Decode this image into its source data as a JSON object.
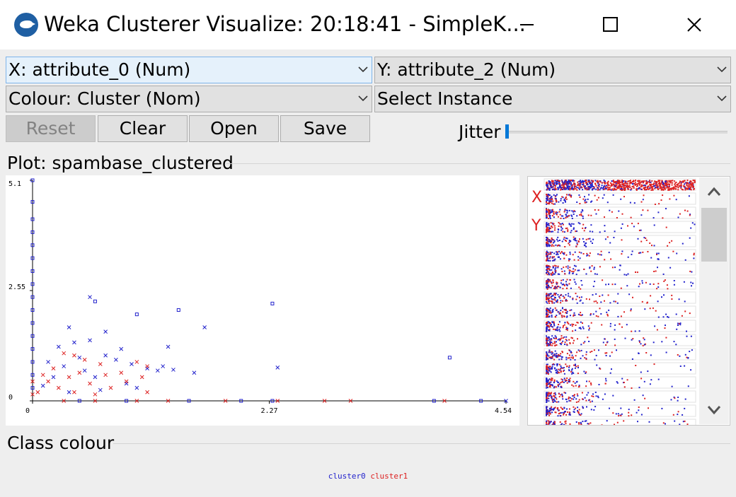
{
  "window": {
    "title": "Weka Clusterer Visualize: 20:18:41 - SimpleK...",
    "icon": "weka-bird-icon",
    "controls": [
      "minimize-icon",
      "maximize-icon",
      "close-icon"
    ]
  },
  "controls": {
    "x_axis": "X: attribute_0 (Num)",
    "y_axis": "Y: attribute_2 (Num)",
    "colour": "Colour: Cluster (Nom)",
    "select_instance": "Select Instance",
    "buttons": {
      "reset": "Reset",
      "clear": "Clear",
      "open": "Open",
      "save": "Save"
    },
    "jitter_label": "Jitter",
    "jitter_value": 0
  },
  "plot": {
    "title": "Plot: spambase_clustered",
    "y_ticks": [
      "5.1",
      "2.55",
      "0"
    ],
    "x_ticks": [
      "0",
      "2.27",
      "4.54"
    ]
  },
  "matrix": {
    "x_label": "X",
    "y_label": "Y",
    "rows": 18
  },
  "class_colour": {
    "title": "Class colour",
    "legend": [
      {
        "name": "cluster0",
        "color": "#2222cc"
      },
      {
        "name": "cluster1",
        "color": "#dd2222"
      }
    ]
  },
  "chart_data": {
    "type": "scatter",
    "title": "Plot: spambase_clustered",
    "xlabel": "attribute_0",
    "ylabel": "attribute_2",
    "xlim": [
      0,
      4.54
    ],
    "ylim": [
      0,
      5.1
    ],
    "x_ticks": [
      0,
      2.27,
      4.54
    ],
    "y_ticks": [
      0,
      2.55,
      5.1
    ],
    "series": [
      {
        "name": "cluster0",
        "color": "#2222cc",
        "points": [
          {
            "x": 0.55,
            "y": 2.4,
            "m": "x"
          },
          {
            "x": 0.6,
            "y": 2.3,
            "m": "s"
          },
          {
            "x": 1.0,
            "y": 2.0,
            "m": "s"
          },
          {
            "x": 1.4,
            "y": 2.1,
            "m": "s"
          },
          {
            "x": 2.3,
            "y": 2.25,
            "m": "s"
          },
          {
            "x": 1.65,
            "y": 1.7,
            "m": "x"
          },
          {
            "x": 4.0,
            "y": 1.0,
            "m": "s"
          },
          {
            "x": 2.35,
            "y": 0.77,
            "m": "x"
          },
          {
            "x": 0.35,
            "y": 1.7,
            "m": "x"
          },
          {
            "x": 0.4,
            "y": 1.35,
            "m": "x"
          },
          {
            "x": 0.25,
            "y": 1.25,
            "m": "x"
          },
          {
            "x": 0.55,
            "y": 1.4,
            "m": "x"
          },
          {
            "x": 0.7,
            "y": 1.05,
            "m": "x"
          },
          {
            "x": 0.8,
            "y": 0.95,
            "m": "x"
          },
          {
            "x": 0.95,
            "y": 0.85,
            "m": "x"
          },
          {
            "x": 1.1,
            "y": 0.75,
            "m": "x"
          },
          {
            "x": 1.2,
            "y": 0.7,
            "m": "x"
          },
          {
            "x": 1.3,
            "y": 1.25,
            "m": "x"
          },
          {
            "x": 1.25,
            "y": 0.8,
            "m": "x"
          },
          {
            "x": 1.35,
            "y": 0.72,
            "m": "x"
          },
          {
            "x": 0.6,
            "y": 0.55,
            "m": "x"
          },
          {
            "x": 0.9,
            "y": 0.4,
            "m": "x"
          },
          {
            "x": 1.0,
            "y": 0.3,
            "m": "x"
          },
          {
            "x": 0.3,
            "y": 0.8,
            "m": "x"
          },
          {
            "x": 0.2,
            "y": 0.55,
            "m": "x"
          },
          {
            "x": 0.5,
            "y": 0.7,
            "m": "x"
          },
          {
            "x": 0.15,
            "y": 0.9,
            "m": "x"
          },
          {
            "x": 0.45,
            "y": 1.0,
            "m": "x"
          },
          {
            "x": 0.7,
            "y": 1.6,
            "m": "x"
          },
          {
            "x": 0.85,
            "y": 1.2,
            "m": "x"
          },
          {
            "x": 1.55,
            "y": 0.65,
            "m": "x"
          },
          {
            "x": 0.1,
            "y": 0.35,
            "m": "x"
          },
          {
            "x": 0.35,
            "y": 0.2,
            "m": "x"
          },
          {
            "x": 0.65,
            "y": 0.25,
            "m": "x"
          },
          {
            "x": 0,
            "y": 5.1,
            "m": "s"
          },
          {
            "x": 0,
            "y": 4.6,
            "m": "s"
          },
          {
            "x": 0,
            "y": 4.2,
            "m": "s"
          },
          {
            "x": 0,
            "y": 3.9,
            "m": "s"
          },
          {
            "x": 0,
            "y": 3.6,
            "m": "s"
          },
          {
            "x": 0,
            "y": 3.3,
            "m": "s"
          },
          {
            "x": 0,
            "y": 3.0,
            "m": "s"
          },
          {
            "x": 0,
            "y": 2.7,
            "m": "s"
          },
          {
            "x": 0,
            "y": 2.4,
            "m": "s"
          },
          {
            "x": 0,
            "y": 2.1,
            "m": "s"
          },
          {
            "x": 0,
            "y": 1.8,
            "m": "s"
          },
          {
            "x": 0,
            "y": 1.5,
            "m": "s"
          },
          {
            "x": 0,
            "y": 1.2,
            "m": "s"
          },
          {
            "x": 0,
            "y": 0.9,
            "m": "s"
          },
          {
            "x": 0,
            "y": 0.6,
            "m": "s"
          },
          {
            "x": 0,
            "y": 0.3,
            "m": "s"
          },
          {
            "x": 0.45,
            "y": 0,
            "m": "s"
          },
          {
            "x": 0.9,
            "y": 0,
            "m": "s"
          },
          {
            "x": 1.5,
            "y": 0,
            "m": "s"
          },
          {
            "x": 2.0,
            "y": 0,
            "m": "s"
          },
          {
            "x": 2.3,
            "y": 0,
            "m": "s"
          },
          {
            "x": 3.85,
            "y": 0,
            "m": "s"
          },
          {
            "x": 4.3,
            "y": 0,
            "m": "s"
          },
          {
            "x": 4.54,
            "y": 0,
            "m": "x"
          }
        ]
      },
      {
        "name": "cluster1",
        "color": "#dd2222",
        "points": [
          {
            "x": 0.4,
            "y": 1.05,
            "m": "x"
          },
          {
            "x": 0.5,
            "y": 0.95,
            "m": "x"
          },
          {
            "x": 0.65,
            "y": 0.85,
            "m": "x"
          },
          {
            "x": 0.3,
            "y": 1.1,
            "m": "x"
          },
          {
            "x": 0.2,
            "y": 0.75,
            "m": "x"
          },
          {
            "x": 0.15,
            "y": 0.45,
            "m": "x"
          },
          {
            "x": 0.25,
            "y": 0.3,
            "m": "x"
          },
          {
            "x": 0.4,
            "y": 0.2,
            "m": "x"
          },
          {
            "x": 0.55,
            "y": 0.4,
            "m": "x"
          },
          {
            "x": 0.75,
            "y": 0.3,
            "m": "x"
          },
          {
            "x": 0.85,
            "y": 0.65,
            "m": "x"
          },
          {
            "x": 1.05,
            "y": 0.55,
            "m": "x"
          },
          {
            "x": 1.1,
            "y": 0.8,
            "m": "x"
          },
          {
            "x": 1.0,
            "y": 0.9,
            "m": "x"
          },
          {
            "x": 1.1,
            "y": 0.2,
            "m": "x"
          },
          {
            "x": 0.1,
            "y": 0.6,
            "m": "x"
          },
          {
            "x": 0.05,
            "y": 0.2,
            "m": "x"
          },
          {
            "x": 0.35,
            "y": 0.55,
            "m": "x"
          },
          {
            "x": 0.45,
            "y": 0.65,
            "m": "x"
          },
          {
            "x": 0.6,
            "y": 0.15,
            "m": "x"
          },
          {
            "x": 0.7,
            "y": 0.6,
            "m": "x"
          },
          {
            "x": 0.9,
            "y": 0.45,
            "m": "x"
          },
          {
            "x": 0,
            "y": 0.45,
            "m": "x"
          },
          {
            "x": 0,
            "y": 0.15,
            "m": "x"
          },
          {
            "x": 0.3,
            "y": 0,
            "m": "x"
          },
          {
            "x": 0.6,
            "y": 0,
            "m": "x"
          },
          {
            "x": 1.0,
            "y": 0,
            "m": "x"
          },
          {
            "x": 1.3,
            "y": 0,
            "m": "x"
          },
          {
            "x": 1.85,
            "y": 0,
            "m": "x"
          },
          {
            "x": 2.35,
            "y": 0,
            "m": "x"
          },
          {
            "x": 2.8,
            "y": 0,
            "m": "x"
          },
          {
            "x": 3.05,
            "y": 0,
            "m": "x"
          },
          {
            "x": 3.95,
            "y": 0,
            "m": "x"
          }
        ]
      }
    ]
  }
}
